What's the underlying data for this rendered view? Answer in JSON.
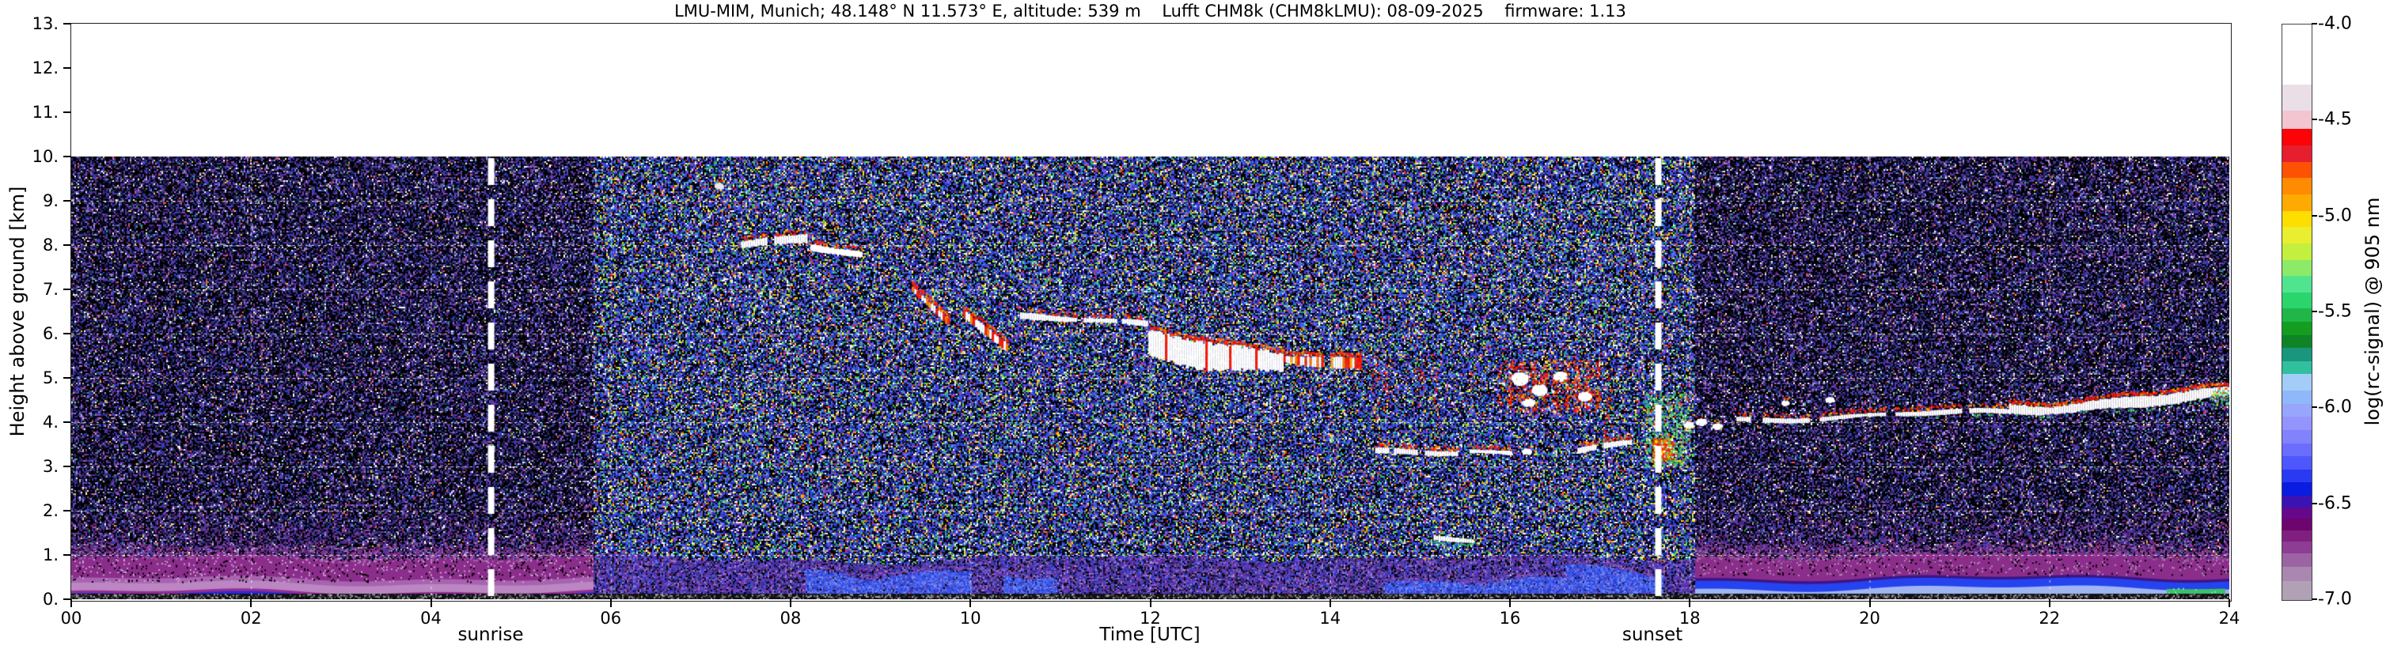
{
  "header": {
    "title": "LMU-MIM, Munich; 48.148° N 11.573° E, altitude: 539 m    Lufft CHM8k (CHM8kLMU): 08-09-2025    firmware: 1.13"
  },
  "axes": {
    "y_label": "Height above ground [km]",
    "x_label": "Time [UTC]",
    "y_ticks": [
      "0.",
      "1.",
      "2.",
      "3.",
      "4.",
      "5.",
      "6.",
      "7.",
      "8.",
      "9.",
      "10.",
      "11.",
      "12.",
      "13."
    ],
    "x_ticks": [
      "00",
      "02",
      "04",
      "06",
      "08",
      "10",
      "12",
      "14",
      "16",
      "18",
      "20",
      "22",
      "24"
    ],
    "sunrise": {
      "label": "sunrise",
      "time_utc": 4.67
    },
    "sunset": {
      "label": "sunset",
      "time_utc": 17.65
    }
  },
  "colorbar": {
    "label": "log(rc-signal) @ 905 nm",
    "ticks": [
      "-4.0",
      "-4.5",
      "-5.0",
      "-5.5",
      "-6.0",
      "-6.5",
      "-7.0"
    ],
    "tick_values": [
      -4.0,
      -4.5,
      -5.0,
      -5.5,
      -6.0,
      -6.5,
      -7.0
    ],
    "segments": [
      [
        "#ffffff",
        15
      ],
      [
        "#eadfe7",
        6.6
      ],
      [
        "#f2c5d1",
        4.7
      ],
      [
        "#fb0307",
        4.1
      ],
      [
        "#e61e2e",
        4.1
      ],
      [
        "#fd5204",
        4.1
      ],
      [
        "#fe8b01",
        4.1
      ],
      [
        "#feaa02",
        4.1
      ],
      [
        "#fedd00",
        4.1
      ],
      [
        "#e9ee30",
        4.1
      ],
      [
        "#c3ef3e",
        4.1
      ],
      [
        "#8cea68",
        4.1
      ],
      [
        "#50e48e",
        4.1
      ],
      [
        "#2bd56e",
        4.1
      ],
      [
        "#21b648",
        3.3
      ],
      [
        "#149d20",
        3.3
      ],
      [
        "#0e8426",
        3.3
      ],
      [
        "#1a967e",
        3.3
      ],
      [
        "#30c09e",
        3.3
      ],
      [
        "#a3ccf8",
        4.1
      ],
      [
        "#8fb8fa",
        3.3
      ],
      [
        "#97a5fa",
        3.3
      ],
      [
        "#9495fc",
        3.3
      ],
      [
        "#8283fc",
        3.3
      ],
      [
        "#6a6dfe",
        3.3
      ],
      [
        "#4d57fc",
        3.3
      ],
      [
        "#2a3af2",
        3.3
      ],
      [
        "#0a1cdf",
        3.3
      ],
      [
        "#3b13b2",
        2.9
      ],
      [
        "#65088c",
        2.9
      ],
      [
        "#6e046e",
        2.9
      ],
      [
        "#811f81",
        2.9
      ],
      [
        "#8d3d93",
        2.9
      ],
      [
        "#9c63a3",
        3.3
      ],
      [
        "#a987b0",
        3.7
      ],
      [
        "#b1a1b5",
        4.7
      ]
    ]
  },
  "chart_data": {
    "type": "heatmap",
    "title": "LMU-MIM, Munich; 48.148° N 11.573° E, altitude: 539 m    Lufft CHM8k (CHM8kLMU): 08-09-2025    firmware: 1.13",
    "xlabel": "Time [UTC]",
    "ylabel": "Height above ground [km]",
    "x_range": [
      0,
      24
    ],
    "y_range_km": [
      0,
      13
    ],
    "data_top_km": 10,
    "value_label": "log(rc-signal) @ 905 nm",
    "value_range": [
      -7.0,
      -4.0
    ],
    "grid_hours": [
      2,
      4,
      6,
      8,
      10,
      12,
      14,
      16,
      18,
      20,
      22
    ],
    "grid_km": [
      1,
      2,
      3,
      4,
      5,
      6,
      7,
      8,
      9
    ],
    "sun_lines_utc": [
      4.67,
      17.65
    ],
    "day_window_utc": [
      5.8,
      18.05
    ],
    "noise": {
      "day": [
        [
          "#000000",
          22
        ],
        [
          "#12122e",
          9
        ],
        [
          "#2b3fd0",
          11
        ],
        [
          "#3b55e8",
          8
        ],
        [
          "#5577f0",
          6
        ],
        [
          "#1a2a90",
          7
        ],
        [
          "#6a3fd0",
          4
        ],
        [
          "#8855cc",
          3
        ],
        [
          "#22bb55",
          2.5
        ],
        [
          "#55dd44",
          2
        ],
        [
          "#cfe838",
          2
        ],
        [
          "#ffe400",
          1.8
        ],
        [
          "#ff9900",
          1.4
        ],
        [
          "#ff3311",
          1.6
        ],
        [
          "#ffffff",
          3.2
        ],
        [
          "#44ccdd",
          1.8
        ],
        [
          "#dddddd",
          1.4
        ],
        [
          "#cc44cc",
          1
        ]
      ],
      "night": [
        [
          "#000000",
          34
        ],
        [
          "#0d0d24",
          11
        ],
        [
          "#23235a",
          9
        ],
        [
          "#34348c",
          7
        ],
        [
          "#4444bb",
          5
        ],
        [
          "#5b2d9e",
          4.5
        ],
        [
          "#7a3fae",
          3
        ],
        [
          "#2a3fd0",
          2.5
        ],
        [
          "#8899ee",
          2
        ],
        [
          "#aa77cc",
          1.8
        ],
        [
          "#ffffff",
          1.5
        ],
        [
          "#bbbbbb",
          1.1
        ],
        [
          "#33aa66",
          0.7
        ],
        [
          "#ffcc44",
          0.5
        ],
        [
          "#ff5544",
          0.6
        ],
        [
          "#904aa8",
          2
        ]
      ]
    },
    "surface": {
      "left_bands": [
        [
          0.0,
          0.04,
          "#15152a"
        ],
        [
          0.035,
          0.11,
          "#2a2ad8"
        ],
        [
          0.1,
          0.18,
          "#932e96"
        ],
        [
          0.16,
          0.36,
          "#bb86c2"
        ],
        [
          0.34,
          0.5,
          "#a863b0"
        ],
        [
          0.45,
          0.92,
          "#8b2d8b"
        ]
      ],
      "right_bands": [
        [
          0.0,
          0.035,
          "#15152a"
        ],
        [
          0.03,
          0.3,
          "#a0b6f2"
        ],
        [
          0.26,
          0.46,
          "#2543ee"
        ],
        [
          0.44,
          0.54,
          "#3c1486"
        ],
        [
          0.5,
          0.98,
          "#8b2d8b"
        ]
      ],
      "green_patch": {
        "t0": 23.3,
        "t1": 23.95,
        "h0": 0.07,
        "h1": 0.26,
        "color": "#3ec06a"
      },
      "day_pal": [
        [
          "#000000",
          10
        ],
        [
          "#15152a",
          6
        ],
        [
          "#5b2da0",
          12
        ],
        [
          "#7a3fb0",
          9
        ],
        [
          "#3a3ad0",
          10
        ],
        [
          "#2a2a80",
          8
        ],
        [
          "#9a5fc0",
          5
        ],
        [
          "#4455e8",
          6
        ],
        [
          "#8877ee",
          3
        ],
        [
          "#bb88cc",
          2.5
        ],
        [
          "#6633aa",
          6
        ]
      ],
      "blue_pal": [
        [
          "#3d5bf2",
          5
        ],
        [
          "#5c7cf8",
          3
        ],
        [
          "#2440d8",
          2
        ],
        [
          "#7a97fa",
          1
        ]
      ],
      "day_top_km": 0.92,
      "blue_blobs": [
        {
          "t0": 8.15,
          "t1": 10.0,
          "h": 0.7
        },
        {
          "t0": 10.35,
          "t1": 10.95,
          "h": 0.55
        },
        {
          "t0": 14.6,
          "t1": 16.6,
          "h": 0.42
        },
        {
          "t0": 16.6,
          "t1": 17.7,
          "h": 0.75
        }
      ]
    },
    "features": [
      {
        "type": "blob",
        "t": 7.2,
        "h": 9.35,
        "rt": 0.05,
        "rh": 0.06,
        "c": "#e8e8e8"
      },
      {
        "type": "cloud_line",
        "t0": 7.45,
        "t1": 8.18,
        "h0": 8.02,
        "h1": 8.12,
        "th": 0.13,
        "red": 0.5,
        "gaps": [
          [
            7.72,
            7.8
          ]
        ]
      },
      {
        "type": "cloud_line",
        "t0": 8.22,
        "t1": 8.8,
        "h0": 7.92,
        "h1": 7.75,
        "th": 0.1,
        "red": 0.4
      },
      {
        "type": "cloud_line",
        "t0": 9.35,
        "t1": 9.75,
        "h0": 7.0,
        "h1": 6.35,
        "th": 0.13,
        "red": 0.95,
        "redness": 0.55,
        "wamp": 0.06
      },
      {
        "type": "cloud_line",
        "t0": 9.92,
        "t1": 10.42,
        "h0": 6.5,
        "h1": 5.65,
        "th": 0.13,
        "red": 0.85,
        "redness": 0.4
      },
      {
        "type": "cloud_line",
        "t0": 10.55,
        "t1": 11.95,
        "h0": 6.4,
        "h1": 6.18,
        "th": 0.1,
        "red": 0.35,
        "gaps": [
          [
            11.18,
            11.26
          ],
          [
            11.62,
            11.68
          ]
        ]
      },
      {
        "type": "cloud_line",
        "t0": 11.98,
        "t1": 13.48,
        "h0": 5.72,
        "h1": 5.38,
        "th": 0.42,
        "red": 0.85,
        "redness": 0.1,
        "wamp": 0.08
      },
      {
        "type": "cloud_line",
        "t0": 13.48,
        "t1": 14.35,
        "h0": 5.45,
        "h1": 5.28,
        "th": 0.2,
        "red": 0.9,
        "redness": 0.5,
        "gaps": [
          [
            13.92,
            14.0
          ]
        ]
      },
      {
        "type": "red_column",
        "t": 14.5,
        "hb": 4.0,
        "ht": 5.35,
        "w": 10,
        "d": 0.5
      },
      {
        "type": "red_column",
        "t": 14.62,
        "hb": 4.3,
        "ht": 5.5,
        "w": 8,
        "d": 0.4
      },
      {
        "type": "red_column",
        "t": 15.0,
        "hb": 4.35,
        "ht": 5.55,
        "w": 10,
        "d": 0.5
      },
      {
        "type": "red_column",
        "t": 15.15,
        "hb": 4.3,
        "ht": 5.2,
        "w": 8,
        "d": 0.35
      },
      {
        "type": "red_column",
        "t": 15.58,
        "hb": 4.55,
        "ht": 5.3,
        "w": 8,
        "d": 0.35
      },
      {
        "type": "red_column",
        "t": 15.9,
        "hb": 4.4,
        "ht": 5.45,
        "w": 10,
        "d": 0.5
      },
      {
        "type": "red_field",
        "t0": 15.95,
        "t1": 17.0,
        "h0": 4.25,
        "h1": 5.4,
        "d": 0.42
      },
      {
        "type": "blob",
        "t": 16.1,
        "h": 5.0,
        "rt": 0.09,
        "rh": 0.14
      },
      {
        "type": "blob",
        "t": 16.32,
        "h": 4.75,
        "rt": 0.08,
        "rh": 0.12
      },
      {
        "type": "blob",
        "t": 16.55,
        "h": 5.05,
        "rt": 0.07,
        "rh": 0.1
      },
      {
        "type": "blob",
        "t": 16.2,
        "h": 4.45,
        "rt": 0.06,
        "rh": 0.08
      },
      {
        "type": "blob",
        "t": 16.82,
        "h": 4.6,
        "rt": 0.07,
        "rh": 0.1
      },
      {
        "type": "red_column",
        "t": 17.08,
        "hb": 3.55,
        "ht": 5.15,
        "w": 10,
        "d": 0.55
      },
      {
        "type": "cloud_line",
        "t0": 14.5,
        "t1": 15.4,
        "h0": 3.3,
        "h1": 3.3,
        "th": 0.09,
        "red": 0.5,
        "gaps": [
          [
            14.64,
            14.7
          ],
          [
            14.97,
            15.05
          ]
        ]
      },
      {
        "type": "cloud_line",
        "t0": 15.55,
        "t1": 16.02,
        "h0": 3.35,
        "h1": 3.32,
        "th": 0.08,
        "red": 0.4
      },
      {
        "type": "blob",
        "t": 16.18,
        "h": 3.35,
        "rt": 0.05,
        "rh": 0.06
      },
      {
        "type": "cloud_line",
        "t0": 16.75,
        "t1": 17.35,
        "h0": 3.38,
        "h1": 3.5,
        "th": 0.09,
        "red": 0.55,
        "gaps": [
          [
            16.95,
            17.02
          ]
        ]
      },
      {
        "type": "green_cluster",
        "t0": 17.5,
        "t1": 17.98,
        "h0": 3.0,
        "h1": 4.65,
        "core": {
          "t0": 17.58,
          "t1": 17.8,
          "h0": 3.15,
          "h1": 3.65
        }
      },
      {
        "type": "cloud_line",
        "t0": 15.15,
        "t1": 15.58,
        "h0": 1.4,
        "h1": 1.32,
        "th": 0.09,
        "red": 0,
        "green": 0.5
      },
      {
        "type": "blob",
        "t": 17.98,
        "h": 3.95,
        "rt": 0.05,
        "rh": 0.06
      },
      {
        "type": "blob",
        "t": 18.12,
        "h": 4.02,
        "rt": 0.06,
        "rh": 0.07
      },
      {
        "type": "blob",
        "t": 18.3,
        "h": 3.92,
        "rt": 0.05,
        "rh": 0.06
      },
      {
        "type": "blob",
        "t": 19.05,
        "h": 4.45,
        "rt": 0.04,
        "rh": 0.05
      },
      {
        "type": "blob",
        "t": 19.55,
        "h": 4.52,
        "rt": 0.05,
        "rh": 0.05
      },
      {
        "type": "cloud_line",
        "t0": 18.52,
        "t1": 21.55,
        "h0": 4.05,
        "h1": 4.24,
        "th": 0.08,
        "red": 0.45,
        "green": 0.15,
        "gaps": [
          [
            18.66,
            18.8
          ],
          [
            19.32,
            19.44
          ],
          [
            20.18,
            20.27
          ],
          [
            21.02,
            21.1
          ]
        ]
      },
      {
        "type": "cloud_line",
        "t0": 21.55,
        "t1": 24.01,
        "h0": 4.3,
        "h1": 4.6,
        "th": 0.17,
        "red": 0.8,
        "green": 0.3,
        "wamp": 0.07
      },
      {
        "type": "virga",
        "t": 22.9,
        "ht": 4.18,
        "hb": 3.45
      },
      {
        "type": "virga",
        "t": 23.08,
        "ht": 4.25,
        "hb": 3.6
      },
      {
        "type": "virga",
        "t": 23.22,
        "ht": 4.3,
        "hb": 3.55
      },
      {
        "type": "green_cluster",
        "t0": 23.8,
        "t1": 24.01,
        "h0": 4.3,
        "h1": 4.8
      }
    ]
  }
}
